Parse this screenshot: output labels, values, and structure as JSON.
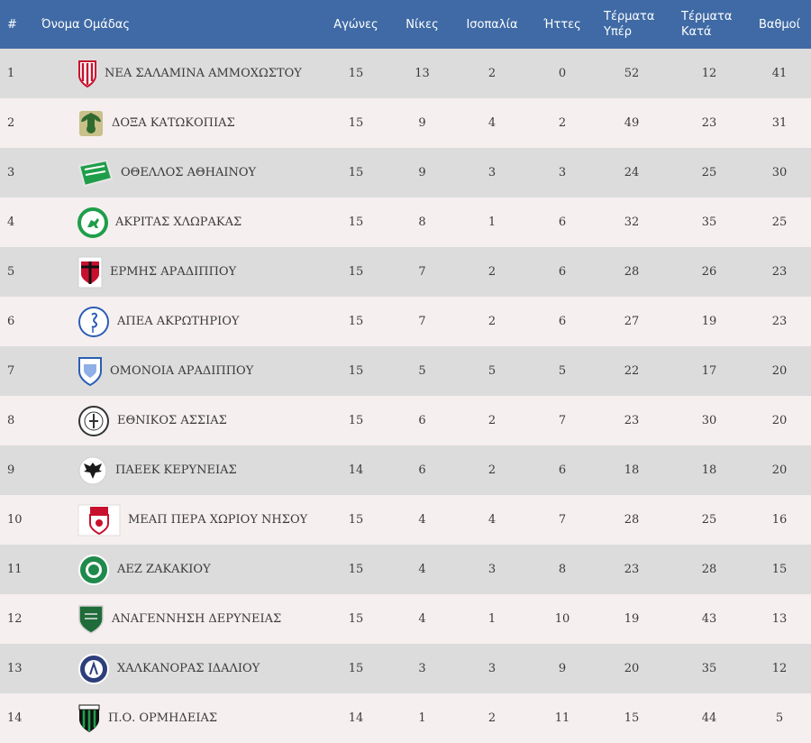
{
  "headers": {
    "rank": "#",
    "team": "Όνομα Ομάδας",
    "played": "Αγώνες",
    "wins": "Νίκες",
    "draws": "Ισοπαλία",
    "losses": "Ήττες",
    "goals_for_1": "Τέρματα",
    "goals_for_2": "Υπέρ",
    "goals_against_1": "Τέρματα",
    "goals_against_2": "Κατά",
    "points": "Βαθμοί"
  },
  "colors": {
    "header_bg": "#3f6aa5",
    "row_odd": "#dcdcdc",
    "row_even": "#f6efef"
  },
  "rows": [
    {
      "rank": "1",
      "team": "ΝΕΑ ΣΑΛΑΜΙΝΑ ΑΜΜΟΧΩΣΤΟΥ",
      "logo": "crest-red-white-stripes",
      "played": "15",
      "wins": "13",
      "draws": "2",
      "losses": "0",
      "gf": "52",
      "ga": "12",
      "pts": "41"
    },
    {
      "rank": "2",
      "team": "ΔΟΞΑ ΚΑΤΩΚΟΠΙΑΣ",
      "logo": "crest-green-eagle",
      "played": "15",
      "wins": "9",
      "draws": "4",
      "losses": "2",
      "gf": "49",
      "ga": "23",
      "pts": "31"
    },
    {
      "rank": "3",
      "team": "ΟΘΕΛΛΟΣ ΑΘΗΑΙΝΟΥ",
      "logo": "crest-green-banner",
      "played": "15",
      "wins": "9",
      "draws": "3",
      "losses": "3",
      "gf": "24",
      "ga": "25",
      "pts": "30"
    },
    {
      "rank": "4",
      "team": "ΑΚΡΙΤΑΣ ΧΛΩΡΑΚΑΣ",
      "logo": "crest-green-round-horse",
      "played": "15",
      "wins": "8",
      "draws": "1",
      "losses": "6",
      "gf": "32",
      "ga": "35",
      "pts": "25"
    },
    {
      "rank": "5",
      "team": "ΕΡΜΗΣ ΑΡΑΔΙΠΠΟΥ",
      "logo": "crest-red-black-shield",
      "played": "15",
      "wins": "7",
      "draws": "2",
      "losses": "6",
      "gf": "28",
      "ga": "26",
      "pts": "23"
    },
    {
      "rank": "6",
      "team": "ΑΠΕΑ ΑΚΡΩΤΗΡΙΟΥ",
      "logo": "crest-blue-round-flamingo",
      "played": "15",
      "wins": "7",
      "draws": "2",
      "losses": "6",
      "gf": "27",
      "ga": "19",
      "pts": "23"
    },
    {
      "rank": "7",
      "team": "ΟΜΟΝΟΙΑ ΑΡΑΔΙΠΠΟΥ",
      "logo": "crest-blue-shield",
      "played": "15",
      "wins": "5",
      "draws": "5",
      "losses": "5",
      "gf": "22",
      "ga": "17",
      "pts": "20"
    },
    {
      "rank": "8",
      "team": "ΕΘΝΙΚΟΣ ΑΣΣΙΑΣ",
      "logo": "crest-round-bw",
      "played": "15",
      "wins": "6",
      "draws": "2",
      "losses": "7",
      "gf": "23",
      "ga": "30",
      "pts": "20"
    },
    {
      "rank": "9",
      "team": "ΠΑΕΕΚ ΚΕΡΥΝΕΙΑΣ",
      "logo": "crest-black-eagle",
      "played": "14",
      "wins": "6",
      "draws": "2",
      "losses": "6",
      "gf": "18",
      "ga": "18",
      "pts": "20"
    },
    {
      "rank": "10",
      "team": "ΜΕΑΠ ΠΕΡΑ ΧΩΡΙΟΥ ΝΗΣΟΥ",
      "logo": "crest-meap-red",
      "played": "15",
      "wins": "4",
      "draws": "4",
      "losses": "7",
      "gf": "28",
      "ga": "25",
      "pts": "16"
    },
    {
      "rank": "11",
      "team": "ΑΕΖ ΖΑΚΑΚΙΟΥ",
      "logo": "crest-green-round-aez",
      "played": "15",
      "wins": "4",
      "draws": "3",
      "losses": "8",
      "gf": "23",
      "ga": "28",
      "pts": "15"
    },
    {
      "rank": "12",
      "team": "ΑΝΑΓΕΝΝΗΣΗ ΔΕΡΥΝΕΙΑΣ",
      "logo": "crest-green-shield",
      "played": "15",
      "wins": "4",
      "draws": "1",
      "losses": "10",
      "gf": "19",
      "ga": "43",
      "pts": "13"
    },
    {
      "rank": "13",
      "team": "ΧΑΛΚΑΝΟΡΑΣ ΙΔΑΛΙΟΥ",
      "logo": "crest-navy-round",
      "played": "15",
      "wins": "3",
      "draws": "3",
      "losses": "9",
      "gf": "20",
      "ga": "35",
      "pts": "12"
    },
    {
      "rank": "14",
      "team": "Π.Ο. ΟΡΜΗΔΕΙΑΣ",
      "logo": "crest-green-black-stripes",
      "played": "14",
      "wins": "1",
      "draws": "2",
      "losses": "11",
      "gf": "15",
      "ga": "44",
      "pts": "5"
    }
  ]
}
